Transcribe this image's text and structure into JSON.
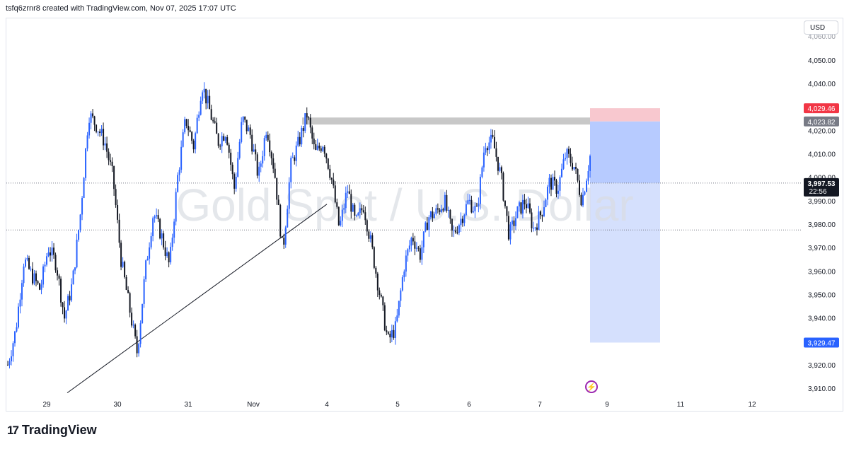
{
  "header": {
    "text": "tsfq6zrnr8 created with TradingView.com, Nov 07, 2025 17:07 UTC"
  },
  "currency": "USD",
  "watermark": "Gold Spot / U.S. Dollar",
  "footer": {
    "logo_mark": "17",
    "brand": "TradingView"
  },
  "flash_icon": "lightning-icon",
  "colors": {
    "up": "#2962ff",
    "down": "#131722",
    "stop_zone": "#f8c8cf",
    "target_zone": "#b7cbff",
    "target_zone_light": "#d5e0fd",
    "resistance_band": "#c8c8c8",
    "stop_label": "#f23645",
    "entry_label": "#787b86",
    "target_label": "#2962ff",
    "last_label": "#131722"
  },
  "price_axis": {
    "ticks": [
      "4,050.00",
      "4,040.00",
      "4,030.00",
      "4,020.00",
      "4,010.00",
      "4,000.00",
      "3,990.00",
      "3,980.00",
      "3,970.00",
      "3,960.00",
      "3,950.00",
      "3,940.00",
      "3,930.00",
      "3,920.00",
      "3,910.00"
    ],
    "top_partial": "4,060.00"
  },
  "price_labels": {
    "stop": "4,029.46",
    "entry": "4,023.82",
    "last": "3,997.53",
    "countdown": "22:56",
    "target": "3,929.47"
  },
  "time_axis": [
    "29",
    "30",
    "31",
    "Nov",
    "4",
    "5",
    "6",
    "7",
    "9",
    "11",
    "12"
  ],
  "chart_data": {
    "type": "candlestick",
    "symbol": "Gold Spot / U.S. Dollar",
    "currency": "USD",
    "ylim": [
      3906,
      4062
    ],
    "y_ticks": [
      4050,
      4040,
      4030,
      4020,
      4010,
      4000,
      3990,
      3980,
      3970,
      3960,
      3950,
      3940,
      3930,
      3920,
      3910
    ],
    "x_ticks": [
      "29",
      "30",
      "31",
      "Nov",
      "4",
      "5",
      "6",
      "7",
      "9",
      "11",
      "12"
    ],
    "last_price": 3997.53,
    "position": {
      "side": "short",
      "stop": 4029.46,
      "entry": 4023.82,
      "target": 3929.47
    },
    "resistance_zone": [
      4022.5,
      4025.5
    ],
    "horizontal_lines": [
      3997.53,
      3977.5
    ],
    "trendline": [
      [
        3908,
        3988.5
      ]
    ],
    "price_path": [
      3920,
      3935,
      3965,
      3958,
      3952,
      3970,
      3963,
      3940,
      3955,
      3985,
      4027,
      4022,
      4015,
      4000,
      3965,
      3945,
      3925,
      3960,
      3985,
      3975,
      3962,
      4000,
      4025,
      4013,
      4040,
      4028,
      4015,
      4020,
      3995,
      4025,
      4018,
      4000,
      4022,
      4002,
      3968,
      4005,
      4015,
      4027,
      4010,
      4015,
      4000,
      3978,
      3995,
      3980,
      3988,
      3970,
      3950,
      3930,
      3936,
      3962,
      3975,
      3967,
      3983,
      3985,
      3990,
      3975,
      3982,
      3990,
      3985,
      4015,
      4015,
      4000,
      3975,
      3985,
      3990,
      3978,
      3985,
      3998,
      3995,
      4010,
      4005,
      3990,
      4009
    ]
  }
}
